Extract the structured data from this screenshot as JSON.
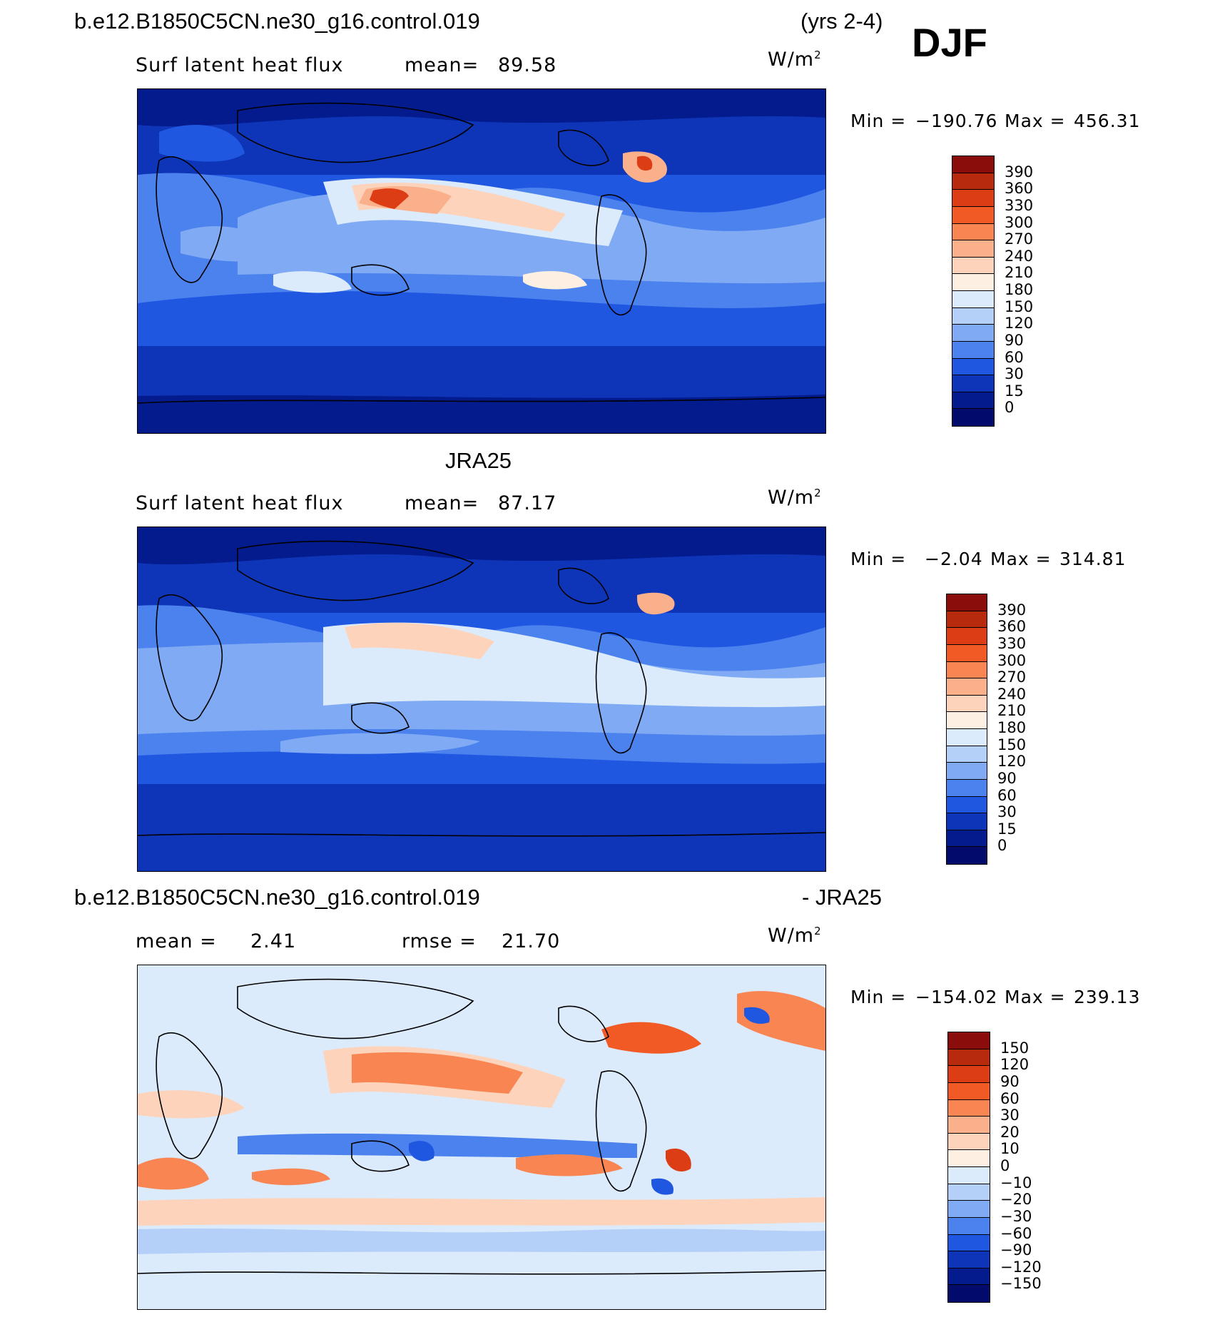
{
  "season": "DJF",
  "panels": [
    {
      "title_left": "b.e12.B1850C5CN.ne30_g16.control.019",
      "title_right": "(yrs 2-4)",
      "variable": "Surf latent heat flux",
      "stat1_label": "mean=",
      "stat1_value": "89.58",
      "stat2_label": "",
      "stat2_value": "",
      "units": "W/m",
      "units_exp": "2",
      "min_label": "Min =",
      "min_value": "−190.76",
      "max_label": "Max =",
      "max_value": "456.31",
      "colorbar_labels": [
        "390",
        "360",
        "330",
        "300",
        "270",
        "240",
        "210",
        "180",
        "150",
        "120",
        "90",
        "60",
        "30",
        "15",
        "0"
      ],
      "colorbar_colors": [
        "#8a0d0c",
        "#b82a0e",
        "#dc3d14",
        "#f15a24",
        "#f98652",
        "#fbb08c",
        "#fdd4bb",
        "#fdf0e2",
        "#dcebfb",
        "#b4d0f8",
        "#80abf4",
        "#4c82ee",
        "#2057e1",
        "#0e35b8",
        "#031b8c",
        "#020a6b"
      ]
    },
    {
      "title_left": "JRA25",
      "title_right": "",
      "variable": "Surf latent heat flux",
      "stat1_label": "mean=",
      "stat1_value": "87.17",
      "stat2_label": "",
      "stat2_value": "",
      "units": "W/m",
      "units_exp": "2",
      "min_label": "Min =",
      "min_value": "−2.04",
      "max_label": "Max =",
      "max_value": "314.81",
      "colorbar_labels": [
        "390",
        "360",
        "330",
        "300",
        "270",
        "240",
        "210",
        "180",
        "150",
        "120",
        "90",
        "60",
        "30",
        "15",
        "0"
      ],
      "colorbar_colors": [
        "#8a0d0c",
        "#b82a0e",
        "#dc3d14",
        "#f15a24",
        "#f98652",
        "#fbb08c",
        "#fdd4bb",
        "#fdf0e2",
        "#dcebfb",
        "#b4d0f8",
        "#80abf4",
        "#4c82ee",
        "#2057e1",
        "#0e35b8",
        "#031b8c",
        "#020a6b"
      ]
    },
    {
      "title_left": "b.e12.B1850C5CN.ne30_g16.control.019",
      "title_right": "- JRA25",
      "variable": "",
      "stat1_label": "mean =",
      "stat1_value": "2.41",
      "stat2_label": "rmse =",
      "stat2_value": "21.70",
      "units": "W/m",
      "units_exp": "2",
      "min_label": "Min =",
      "min_value": "−154.02",
      "max_label": "Max =",
      "max_value": "239.13",
      "colorbar_labels": [
        "150",
        "120",
        "90",
        "60",
        "30",
        "20",
        "10",
        "0",
        "−10",
        "−20",
        "−30",
        "−60",
        "−90",
        "−120",
        "−150"
      ],
      "colorbar_colors": [
        "#8a0d0c",
        "#b82a0e",
        "#dc3d14",
        "#f15a24",
        "#f98652",
        "#fbb08c",
        "#fdd4bb",
        "#fdf0e2",
        "#dcebfb",
        "#b4d0f8",
        "#80abf4",
        "#4c82ee",
        "#2057e1",
        "#0e35b8",
        "#031b8c",
        "#020a6b"
      ]
    }
  ]
}
